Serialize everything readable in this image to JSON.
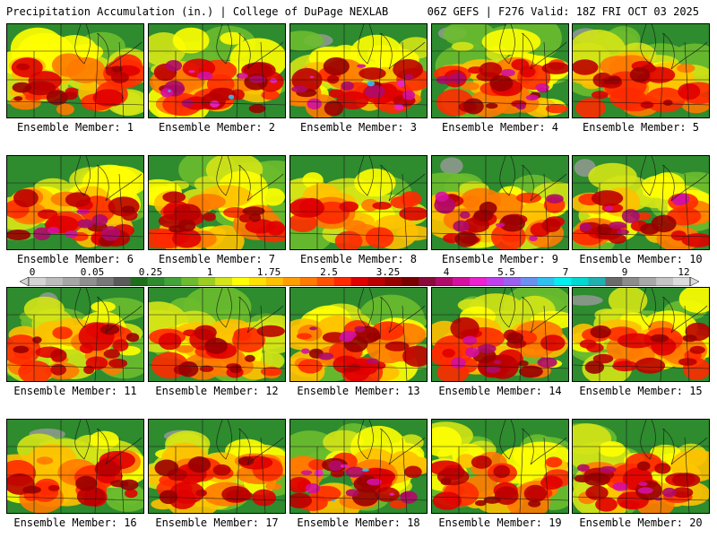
{
  "header": {
    "left": "Precipitation Accumulation (in.) | College of DuPage NEXLAB",
    "right": "06Z GEFS | F276 Valid: 18Z FRI OCT 03 2025"
  },
  "caption_prefix": "Ensemble Member: ",
  "members": [
    {
      "number": "1",
      "max_class": "heavy"
    },
    {
      "number": "2",
      "max_class": "extreme"
    },
    {
      "number": "3",
      "max_class": "extreme"
    },
    {
      "number": "4",
      "max_class": "very heavy"
    },
    {
      "number": "5",
      "max_class": "heavy"
    },
    {
      "number": "6",
      "max_class": "very heavy"
    },
    {
      "number": "7",
      "max_class": "heavy"
    },
    {
      "number": "8",
      "max_class": "moderate"
    },
    {
      "number": "9",
      "max_class": "very heavy"
    },
    {
      "number": "10",
      "max_class": "very heavy"
    },
    {
      "number": "11",
      "max_class": "heavy"
    },
    {
      "number": "12",
      "max_class": "heavy"
    },
    {
      "number": "13",
      "max_class": "very heavy"
    },
    {
      "number": "14",
      "max_class": "very heavy"
    },
    {
      "number": "15",
      "max_class": "heavy"
    },
    {
      "number": "16",
      "max_class": "heavy"
    },
    {
      "number": "17",
      "max_class": "heavy"
    },
    {
      "number": "18",
      "max_class": "extreme"
    },
    {
      "number": "19",
      "max_class": "heavy"
    },
    {
      "number": "20",
      "max_class": "very heavy"
    }
  ],
  "colorbar": {
    "labels": [
      "0",
      "0.05",
      "0.25",
      "1",
      "1.75",
      "2.5",
      "3.25",
      "4",
      "5.5",
      "7",
      "9",
      "12"
    ],
    "colors": [
      "#d4d4d4",
      "#bcbcbc",
      "#a6a6a6",
      "#8f8f8f",
      "#787878",
      "#5a5a5a",
      "#1e6e1e",
      "#2e8b2e",
      "#43a33a",
      "#6cbc2e",
      "#9ccd22",
      "#d4e416",
      "#ffff00",
      "#ffe000",
      "#ffc000",
      "#ff9e00",
      "#ff7a00",
      "#ff5200",
      "#ff2a00",
      "#e00000",
      "#bb0000",
      "#990000",
      "#7a0000",
      "#8a0a3a",
      "#b00a6a",
      "#d410a0",
      "#ee20d0",
      "#c040f0",
      "#9a60f0",
      "#6a90f0",
      "#30c0f0",
      "#00f0f0",
      "#00d8d0",
      "#20b0b0",
      "#6a6a6a",
      "#8c8c8c",
      "#a8a8a8",
      "#c4c4c4",
      "#dcdcdc"
    ]
  }
}
